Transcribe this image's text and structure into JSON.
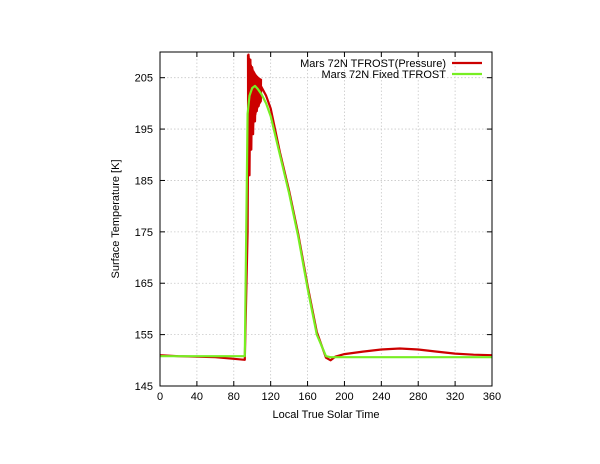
{
  "chart_data": {
    "type": "line",
    "title": "",
    "xlabel": "Local True Solar Time",
    "ylabel": "Surface Temperature [K]",
    "xlim": [
      0,
      360
    ],
    "ylim": [
      145,
      210
    ],
    "xticks": [
      0,
      40,
      80,
      120,
      160,
      200,
      240,
      280,
      320,
      360
    ],
    "yticks": [
      145,
      155,
      165,
      175,
      185,
      195,
      205
    ],
    "grid": true,
    "legend_position": "top-right",
    "series": [
      {
        "name": "Mars 72N TFROST(Pressure)",
        "color": "#cc0000",
        "x": [
          0,
          20,
          40,
          60,
          80,
          92,
          95,
          96,
          97,
          98,
          99,
          100,
          101,
          102,
          103,
          104,
          105,
          106,
          107,
          108,
          109,
          110,
          115,
          120,
          130,
          140,
          150,
          160,
          170,
          180,
          185,
          190,
          200,
          220,
          240,
          260,
          280,
          300,
          320,
          340,
          360
        ],
        "y": [
          151.0,
          150.8,
          150.7,
          150.6,
          150.3,
          150.1,
          175.0,
          209.5,
          186.0,
          208.5,
          191.0,
          207.0,
          194.0,
          206.0,
          196.5,
          205.3,
          198.5,
          204.5,
          199.5,
          203.8,
          200.5,
          203.2,
          201.5,
          199.0,
          190.5,
          183.0,
          174.5,
          164.5,
          155.5,
          150.5,
          150.0,
          150.7,
          151.2,
          151.7,
          152.1,
          152.3,
          152.1,
          151.7,
          151.3,
          151.1,
          151.0
        ],
        "oscillation": {
          "x_start": 95,
          "x_end": 110,
          "max_high": 209.5,
          "min_low": 185.5
        }
      },
      {
        "name": "Mars 72N Fixed TFROST",
        "color": "#77ee22",
        "x": [
          0,
          20,
          40,
          60,
          80,
          92,
          95,
          97,
          100,
          103,
          106,
          110,
          115,
          120,
          130,
          140,
          150,
          160,
          170,
          180,
          185,
          190,
          200,
          220,
          240,
          260,
          280,
          300,
          320,
          340,
          360
        ],
        "y": [
          150.8,
          150.8,
          150.8,
          150.8,
          150.8,
          150.8,
          198.0,
          201.5,
          203.0,
          203.4,
          202.8,
          201.8,
          200.0,
          197.5,
          190.0,
          182.5,
          174.0,
          164.0,
          155.0,
          150.8,
          150.6,
          150.6,
          150.6,
          150.6,
          150.6,
          150.6,
          150.6,
          150.6,
          150.6,
          150.6,
          150.6
        ]
      }
    ]
  }
}
